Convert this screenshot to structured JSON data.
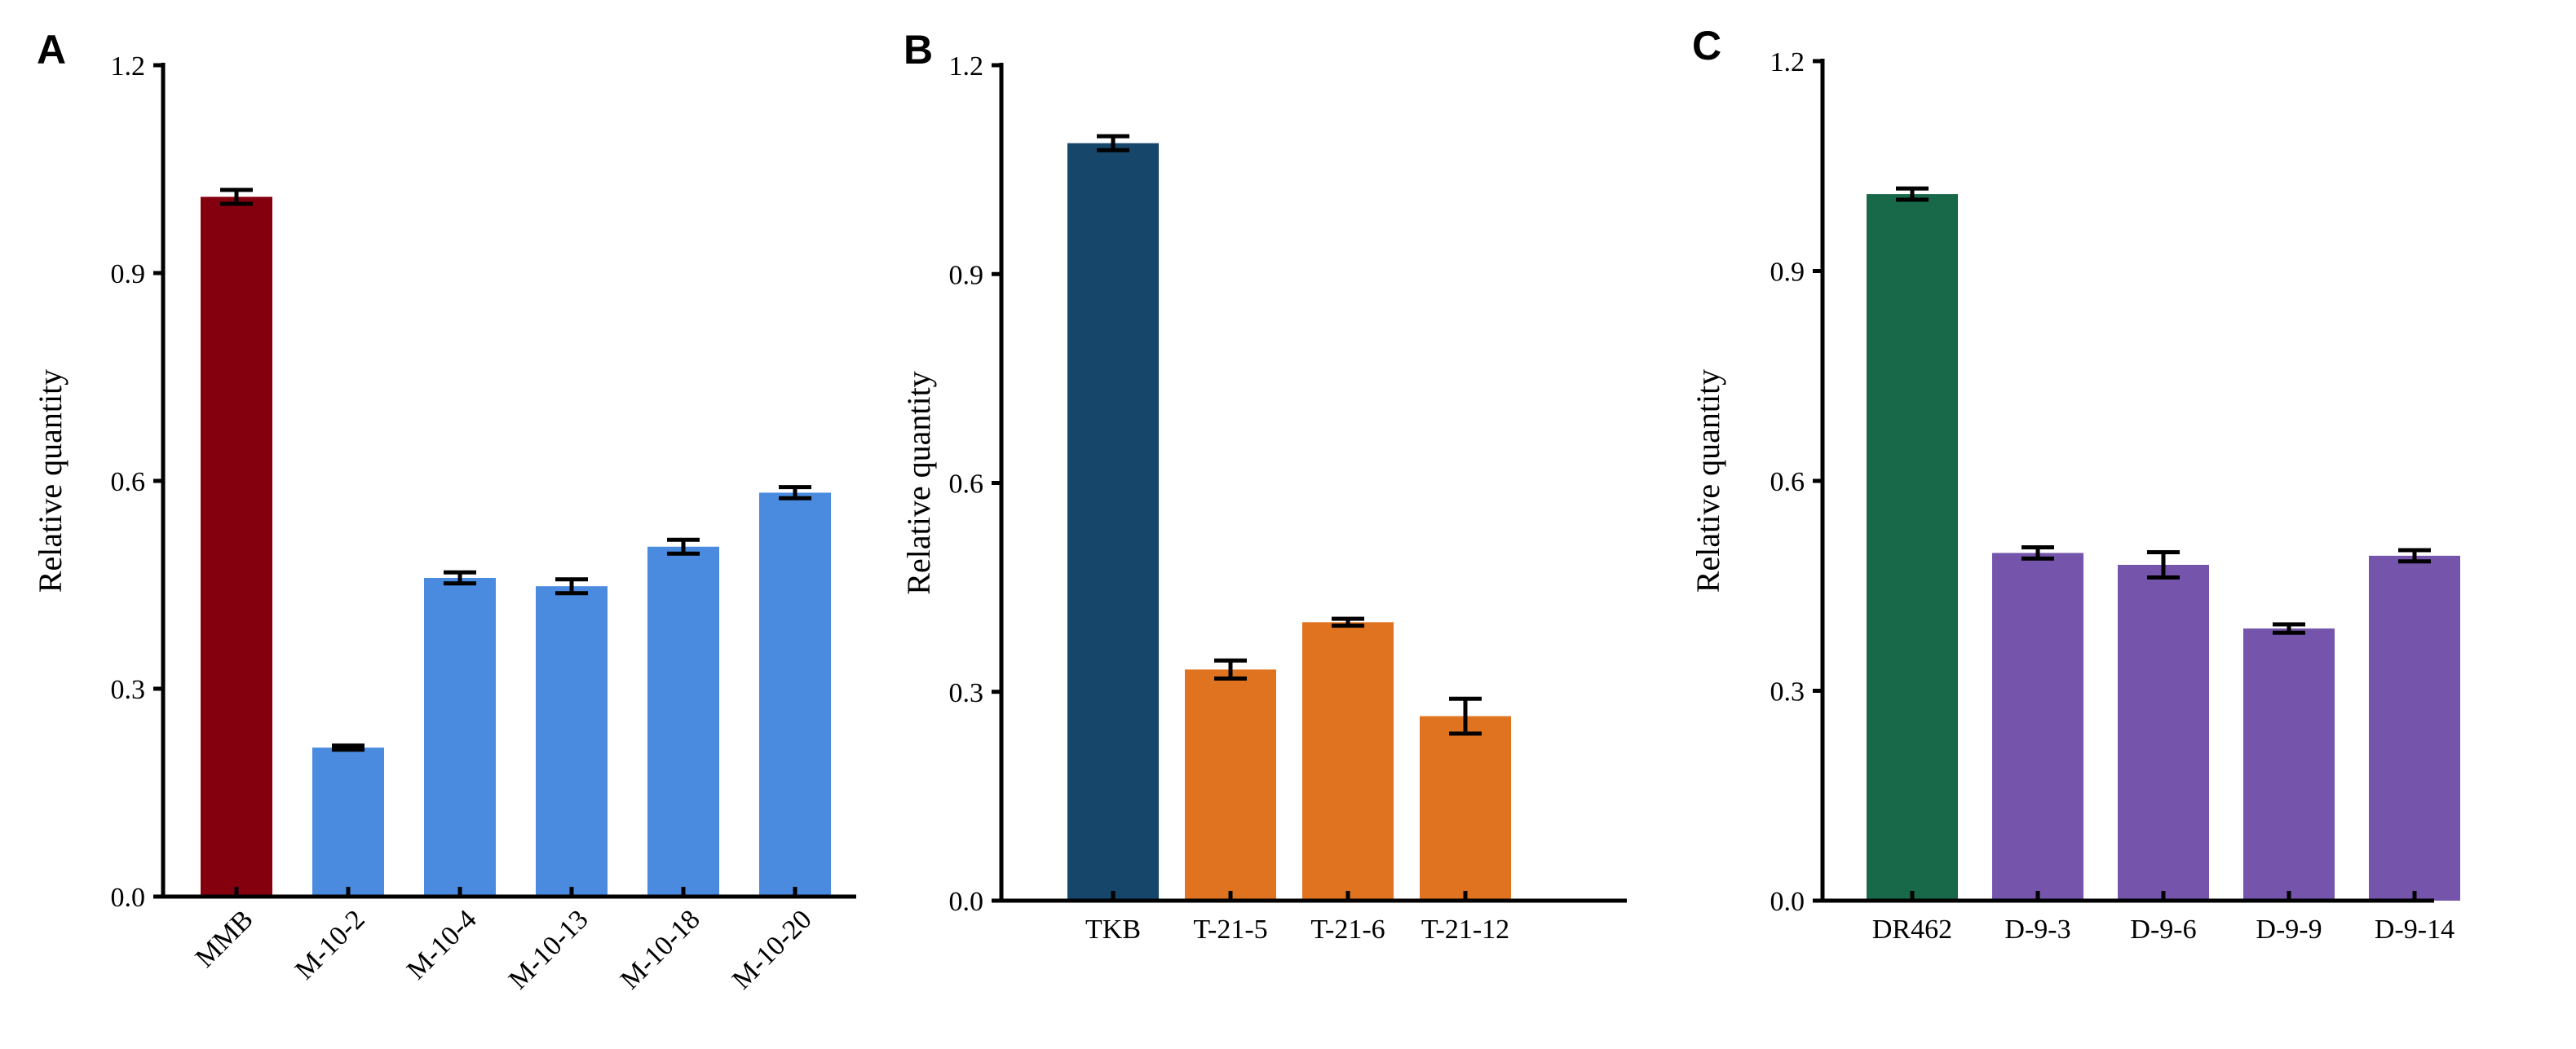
{
  "chart_data": [
    {
      "panel": "A",
      "type": "bar",
      "title": "",
      "xlabel": "",
      "ylabel": "Relative quantity",
      "ylim": [
        0,
        1.2
      ],
      "yticks": [
        "0.0",
        "0.3",
        "0.6",
        "0.9",
        "1.2"
      ],
      "xtick_rotation": "rotated",
      "categories": [
        "MMB",
        "M-10-2",
        "M-10-4",
        "M-10-13",
        "M-10-18",
        "M-10-20"
      ],
      "values": [
        1.01,
        0.215,
        0.46,
        0.448,
        0.505,
        0.583
      ],
      "errors": [
        0.01,
        0.003,
        0.008,
        0.01,
        0.01,
        0.008
      ],
      "colors": [
        "#84000f",
        "#4a8be0",
        "#4a8be0",
        "#4a8be0",
        "#4a8be0",
        "#4a8be0"
      ]
    },
    {
      "panel": "B",
      "type": "bar",
      "title": "",
      "xlabel": "",
      "ylabel": "Relative quantity",
      "ylim": [
        0,
        1.2
      ],
      "yticks": [
        "0.0",
        "0.3",
        "0.6",
        "0.9",
        "1.2"
      ],
      "xtick_rotation": "horizontal",
      "categories": [
        "TKB",
        "T-21-5",
        "T-21-6",
        "T-21-12"
      ],
      "values": [
        1.088,
        0.332,
        0.4,
        0.265
      ],
      "errors": [
        0.01,
        0.013,
        0.005,
        0.025
      ],
      "colors": [
        "#16466a",
        "#e07320",
        "#e07320",
        "#e07320"
      ]
    },
    {
      "panel": "C",
      "type": "bar",
      "title": "",
      "xlabel": "",
      "ylabel": "Relative quantity",
      "ylim": [
        0,
        1.2
      ],
      "yticks": [
        "0.0",
        "0.3",
        "0.6",
        "0.9",
        "1.2"
      ],
      "xtick_rotation": "horizontal",
      "categories": [
        "DR462",
        "D-9-3",
        "D-9-6",
        "D-9-9",
        "D-9-14"
      ],
      "values": [
        1.01,
        0.497,
        0.48,
        0.389,
        0.493
      ],
      "errors": [
        0.008,
        0.008,
        0.018,
        0.006,
        0.008
      ],
      "colors": [
        "#17694a",
        "#7455ab",
        "#7455ab",
        "#7455ab",
        "#7455ab"
      ]
    }
  ]
}
